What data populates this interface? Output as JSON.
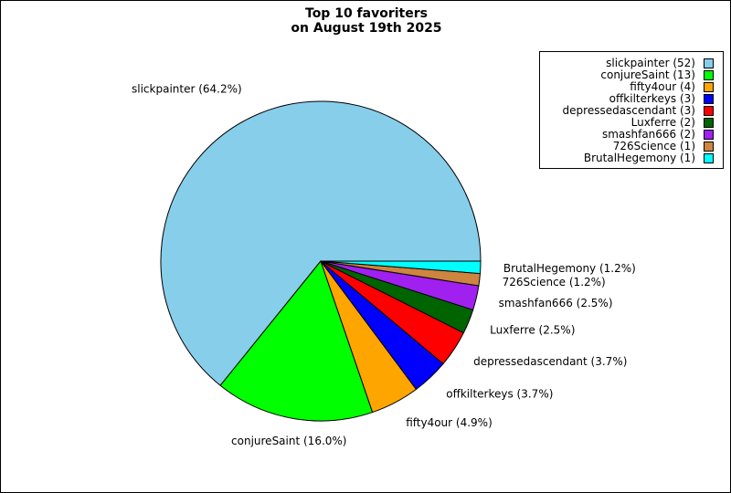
{
  "chart_data": {
    "type": "pie",
    "title": [
      "Top 10 favoriters",
      "on August 19th 2025"
    ],
    "legend_position": "top-right",
    "slices": [
      {
        "name": "slickpainter",
        "value": 52,
        "percent_label": "slickpainter (64.2%)",
        "legend_label": "slickpainter (52)",
        "color": "#87ceeb"
      },
      {
        "name": "conjureSaint",
        "value": 13,
        "percent_label": "conjureSaint (16.0%)",
        "legend_label": "conjureSaint (13)",
        "color": "#00ff00"
      },
      {
        "name": "fifty4our",
        "value": 4,
        "percent_label": "fifty4our (4.9%)",
        "legend_label": "fifty4our (4)",
        "color": "#ffa500"
      },
      {
        "name": "offkilterkeys",
        "value": 3,
        "percent_label": "offkilterkeys (3.7%)",
        "legend_label": "offkilterkeys (3)",
        "color": "#0000ff"
      },
      {
        "name": "depressedascendant",
        "value": 3,
        "percent_label": "depressedascendant (3.7%)",
        "legend_label": "depressedascendant (3)",
        "color": "#ff0000"
      },
      {
        "name": "Luxferre",
        "value": 2,
        "percent_label": "Luxferre (2.5%)",
        "legend_label": "Luxferre (2)",
        "color": "#006400"
      },
      {
        "name": "smashfan666",
        "value": 2,
        "percent_label": "smashfan666 (2.5%)",
        "legend_label": "smashfan666 (2)",
        "color": "#a020f0"
      },
      {
        "name": "726Science",
        "value": 1,
        "percent_label": "726Science (1.2%)",
        "legend_label": "726Science (1)",
        "color": "#cd853f"
      },
      {
        "name": "BrutalHegemony",
        "value": 1,
        "percent_label": "BrutalHegemony (1.2%)",
        "legend_label": "BrutalHegemony (1)",
        "color": "#00ffff"
      }
    ]
  }
}
